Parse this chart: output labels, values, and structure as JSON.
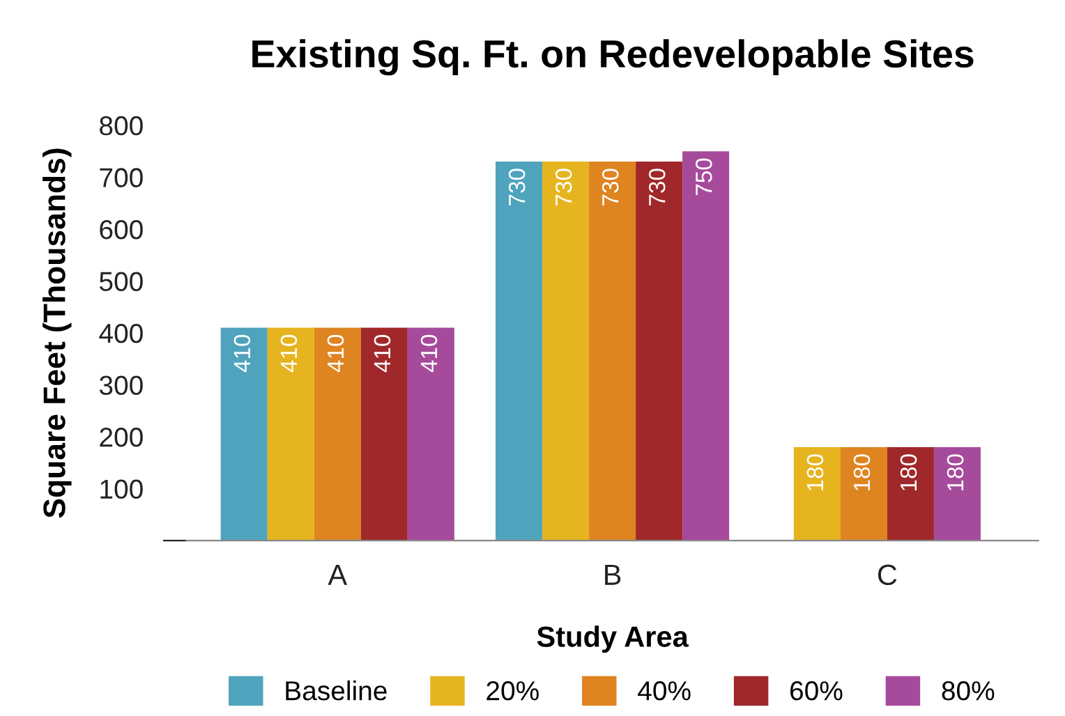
{
  "chart_data": {
    "type": "bar",
    "title": "Existing Sq. Ft. on Redevelopable Sites",
    "xlabel": "Study Area",
    "ylabel": "Square Feet (Thousands)",
    "categories": [
      "A",
      "B",
      "C"
    ],
    "series": [
      {
        "name": "Baseline",
        "color": "#4fa3bd",
        "values": [
          410,
          730,
          null
        ]
      },
      {
        "name": "20%",
        "color": "#e5b41f",
        "values": [
          410,
          730,
          180
        ]
      },
      {
        "name": "40%",
        "color": "#de8420",
        "values": [
          410,
          730,
          180
        ]
      },
      {
        "name": "60%",
        "color": "#a0282a",
        "values": [
          410,
          730,
          180
        ]
      },
      {
        "name": "80%",
        "color": "#a64a9c",
        "values": [
          410,
          750,
          180
        ]
      }
    ],
    "ylim": [
      0,
      800
    ],
    "yticks": [
      {
        "value": 0,
        "label": null
      },
      100,
      200,
      300,
      400,
      500,
      600,
      700,
      800
    ],
    "data_labels": true,
    "grid": false,
    "legend": "bottom"
  }
}
